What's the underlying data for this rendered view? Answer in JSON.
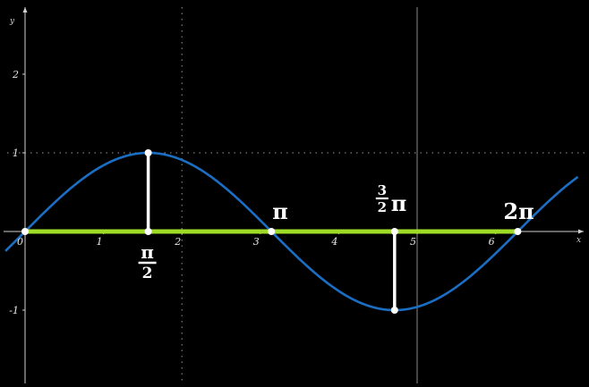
{
  "chart_data": {
    "type": "line",
    "title": "",
    "xlabel": "x",
    "ylabel": "y",
    "xlim": [
      -0.3,
      7.1
    ],
    "ylim": [
      -1.95,
      2.75
    ],
    "grid": false,
    "dotted_reference_lines": {
      "x": [
        2
      ],
      "y": [
        1
      ]
    },
    "solid_reference_lines": {
      "x": [
        5
      ]
    },
    "x_ticks": [
      {
        "value": 0,
        "label": "0"
      },
      {
        "value": 1,
        "label": "1"
      },
      {
        "value": 2,
        "label": "2"
      },
      {
        "value": 3,
        "label": "3"
      },
      {
        "value": 4,
        "label": "4"
      },
      {
        "value": 5,
        "label": "5"
      },
      {
        "value": 6,
        "label": "6"
      }
    ],
    "y_ticks": [
      {
        "value": 2,
        "label": "2"
      },
      {
        "value": 1,
        "label": "1"
      },
      {
        "value": -1,
        "label": "-1"
      }
    ],
    "series": [
      {
        "function": "sin",
        "color": "#1a6fc4",
        "x_range": [
          -0.25,
          7.05
        ],
        "x": [
          0,
          0.5236,
          1.0472,
          1.5708,
          2.0944,
          2.618,
          3.1416,
          3.6652,
          4.1888,
          4.7124,
          5.236,
          5.7596,
          6.2832,
          7.0
        ],
        "y": [
          0,
          0.5,
          0.866,
          1,
          0.866,
          0.5,
          0,
          -0.5,
          -0.866,
          -1,
          -0.866,
          -0.5,
          0,
          0.657
        ]
      }
    ],
    "highlight_segment": {
      "color": "#9fdc27",
      "x": [
        0,
        6.2832
      ],
      "y": 0
    },
    "drop_lines": [
      {
        "x": 1.5708,
        "y": 1,
        "color": "#ffffff"
      },
      {
        "x": 4.7124,
        "y": -1,
        "color": "#ffffff"
      }
    ],
    "marked_points": [
      {
        "x": 0,
        "y": 0,
        "color": "#ffffff"
      },
      {
        "x": 1.5708,
        "y": 0,
        "color": "#ffffff"
      },
      {
        "x": 1.5708,
        "y": 1,
        "color": "#ffffff"
      },
      {
        "x": 3.1416,
        "y": 0,
        "color": "#ffffff"
      },
      {
        "x": 4.7124,
        "y": 0,
        "color": "#ffffff"
      },
      {
        "x": 4.7124,
        "y": -1,
        "color": "#ffffff"
      },
      {
        "x": 6.2832,
        "y": 0,
        "color": "#ffffff"
      }
    ],
    "annotations": [
      {
        "x": 1.5708,
        "numerator": "π",
        "denominator": "2",
        "text": "",
        "position": "below"
      },
      {
        "x": 3.1416,
        "numerator": "",
        "denominator": "",
        "text": "π",
        "position": "above"
      },
      {
        "x": 4.7124,
        "numerator": "3",
        "denominator": "2",
        "text": "π",
        "position": "above"
      },
      {
        "x": 6.2832,
        "numerator": "",
        "denominator": "",
        "text": "2π",
        "position": "above"
      }
    ]
  },
  "colors": {
    "background": "#000000",
    "axes": "#d0d0d0",
    "curve": "#1a6fc4",
    "segment": "#9fdc27",
    "markers": "#ffffff"
  }
}
